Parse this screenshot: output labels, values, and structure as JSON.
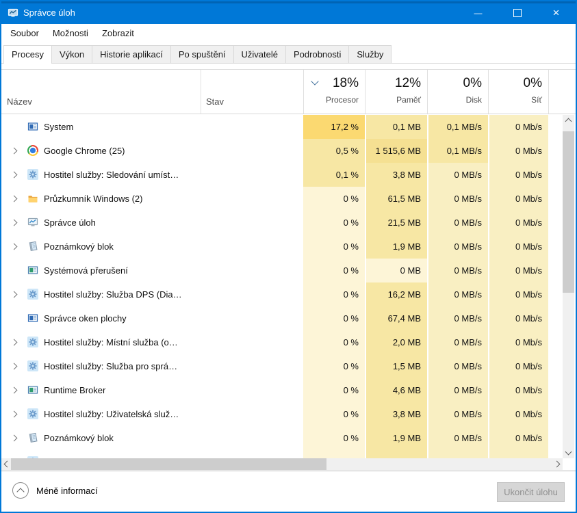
{
  "titlebar": {
    "title": "Správce úloh",
    "minimize_glyph": "—",
    "close_glyph": "×"
  },
  "menubar": {
    "items": [
      "Soubor",
      "Možnosti",
      "Zobrazit"
    ]
  },
  "tabs": {
    "items": [
      {
        "label": "Procesy",
        "active": true
      },
      {
        "label": "Výkon",
        "active": false
      },
      {
        "label": "Historie aplikací",
        "active": false
      },
      {
        "label": "Po spuštění",
        "active": false
      },
      {
        "label": "Uživatelé",
        "active": false
      },
      {
        "label": "Podrobnosti",
        "active": false
      },
      {
        "label": "Služby",
        "active": false
      }
    ]
  },
  "header": {
    "name_label": "Název",
    "status_label": "Stav",
    "metrics": [
      {
        "id": "cpu",
        "pct": "18%",
        "label": "Procesor",
        "sorted": true
      },
      {
        "id": "mem",
        "pct": "12%",
        "label": "Paměť",
        "sorted": false
      },
      {
        "id": "disk",
        "pct": "0%",
        "label": "Disk",
        "sorted": false
      },
      {
        "id": "net",
        "pct": "0%",
        "label": "Síť",
        "sorted": false
      }
    ]
  },
  "processes": [
    {
      "name": "System",
      "icon": "app-window-blue",
      "expand": false,
      "cpu": "17,2 %",
      "mem": "0,1 MB",
      "disk": "0,1 MB/s",
      "net": "0 Mb/s",
      "heat": [
        "h3",
        "h2",
        "h2",
        "h1"
      ]
    },
    {
      "name": "Google Chrome (25)",
      "icon": "chrome",
      "expand": true,
      "cpu": "0,5 %",
      "mem": "1 515,6 MB",
      "disk": "0,1 MB/s",
      "net": "0 Mb/s",
      "heat": [
        "h2",
        "h25",
        "h2",
        "h1"
      ]
    },
    {
      "name": "Hostitel služby: Sledování umíst…",
      "icon": "service-gear",
      "expand": true,
      "cpu": "0,1 %",
      "mem": "3,8 MB",
      "disk": "0 MB/s",
      "net": "0 Mb/s",
      "heat": [
        "h2",
        "h2",
        "h1",
        "h1"
      ]
    },
    {
      "name": "Průzkumník Windows (2)",
      "icon": "folder",
      "expand": true,
      "cpu": "0 %",
      "mem": "61,5 MB",
      "disk": "0 MB/s",
      "net": "0 Mb/s",
      "heat": [
        "h0",
        "h2",
        "h1",
        "h1"
      ]
    },
    {
      "name": "Správce úloh",
      "icon": "task-manager",
      "expand": true,
      "cpu": "0 %",
      "mem": "21,5 MB",
      "disk": "0 MB/s",
      "net": "0 Mb/s",
      "heat": [
        "h0",
        "h2",
        "h1",
        "h1"
      ]
    },
    {
      "name": "Poznámkový blok",
      "icon": "notepad",
      "expand": true,
      "cpu": "0 %",
      "mem": "1,9 MB",
      "disk": "0 MB/s",
      "net": "0 Mb/s",
      "heat": [
        "h0",
        "h2",
        "h1",
        "h1"
      ]
    },
    {
      "name": "Systémová přerušení",
      "icon": "app-window-green",
      "expand": false,
      "cpu": "0 %",
      "mem": "0 MB",
      "disk": "0 MB/s",
      "net": "0 Mb/s",
      "heat": [
        "h0",
        "h0",
        "h1",
        "h1"
      ]
    },
    {
      "name": "Hostitel služby: Služba DPS (Dia…",
      "icon": "service-gear",
      "expand": true,
      "cpu": "0 %",
      "mem": "16,2 MB",
      "disk": "0 MB/s",
      "net": "0 Mb/s",
      "heat": [
        "h0",
        "h2",
        "h1",
        "h1"
      ]
    },
    {
      "name": "Správce oken plochy",
      "icon": "app-window-blue",
      "expand": false,
      "cpu": "0 %",
      "mem": "67,4 MB",
      "disk": "0 MB/s",
      "net": "0 Mb/s",
      "heat": [
        "h0",
        "h2",
        "h1",
        "h1"
      ]
    },
    {
      "name": "Hostitel služby: Místní služba (o…",
      "icon": "service-gear",
      "expand": true,
      "cpu": "0 %",
      "mem": "2,0 MB",
      "disk": "0 MB/s",
      "net": "0 Mb/s",
      "heat": [
        "h0",
        "h2",
        "h1",
        "h1"
      ]
    },
    {
      "name": "Hostitel služby: Služba pro sprá…",
      "icon": "service-gear",
      "expand": true,
      "cpu": "0 %",
      "mem": "1,5 MB",
      "disk": "0 MB/s",
      "net": "0 Mb/s",
      "heat": [
        "h0",
        "h2",
        "h1",
        "h1"
      ]
    },
    {
      "name": "Runtime Broker",
      "icon": "app-window-green",
      "expand": true,
      "cpu": "0 %",
      "mem": "4,6 MB",
      "disk": "0 MB/s",
      "net": "0 Mb/s",
      "heat": [
        "h0",
        "h2",
        "h1",
        "h1"
      ]
    },
    {
      "name": "Hostitel služby: Uživatelská služ…",
      "icon": "service-gear",
      "expand": true,
      "cpu": "0 %",
      "mem": "3,8 MB",
      "disk": "0 MB/s",
      "net": "0 Mb/s",
      "heat": [
        "h0",
        "h2",
        "h1",
        "h1"
      ]
    },
    {
      "name": "Poznámkový blok",
      "icon": "notepad",
      "expand": true,
      "cpu": "0 %",
      "mem": "1,9 MB",
      "disk": "0 MB/s",
      "net": "0 Mb/s",
      "heat": [
        "h0",
        "h2",
        "h1",
        "h1"
      ]
    },
    {
      "name": "",
      "icon": "service-gear",
      "expand": false,
      "partial": true,
      "cpu": "",
      "mem": "",
      "disk": "",
      "net": "",
      "heat": [
        "h0",
        "h2",
        "h1",
        "h1"
      ]
    }
  ],
  "footer": {
    "less_details_label": "Méně informací",
    "end_task_label": "Ukončit úlohu"
  },
  "colors": {
    "accent": "#0078d7",
    "titlebar": "#0078d7",
    "heat": {
      "h0": "#fdf5d7",
      "h1": "#f9efc2",
      "h2": "#f7e7a4",
      "h25": "#f5e092",
      "h3": "#fbd971"
    },
    "scrollbar_thumb": "#cdcdcd",
    "scrollbar_track": "#f0f0f0"
  }
}
